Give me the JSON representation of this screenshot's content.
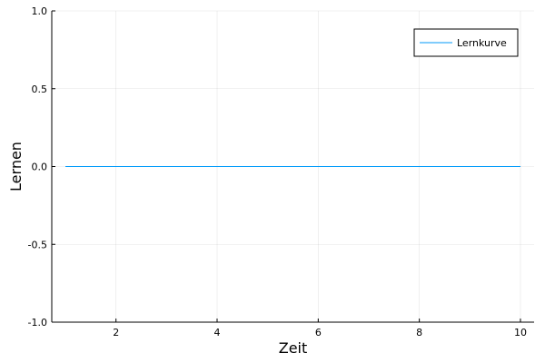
{
  "chart_data": {
    "type": "line",
    "title": "",
    "xlabel": "Zeit",
    "ylabel": "Lernen",
    "xlim": [
      0.73,
      10.27
    ],
    "ylim": [
      -1.0,
      1.0
    ],
    "xticks": [
      2,
      4,
      6,
      8,
      10
    ],
    "xtick_labels": [
      "2",
      "4",
      "6",
      "8",
      "10"
    ],
    "yticks": [
      -1.0,
      -0.5,
      0.0,
      0.5,
      1.0
    ],
    "ytick_labels": [
      "-1.0",
      "-0.5",
      "0.0",
      "0.5",
      "1.0"
    ],
    "grid": true,
    "legend_position": "top-right",
    "series": [
      {
        "name": "Lernkurve",
        "color": "#009AFA",
        "x": [
          1,
          2,
          3,
          4,
          5,
          6,
          7,
          8,
          9,
          10
        ],
        "y": [
          0,
          0,
          0,
          0,
          0,
          0,
          0,
          0,
          0,
          0
        ]
      }
    ]
  }
}
